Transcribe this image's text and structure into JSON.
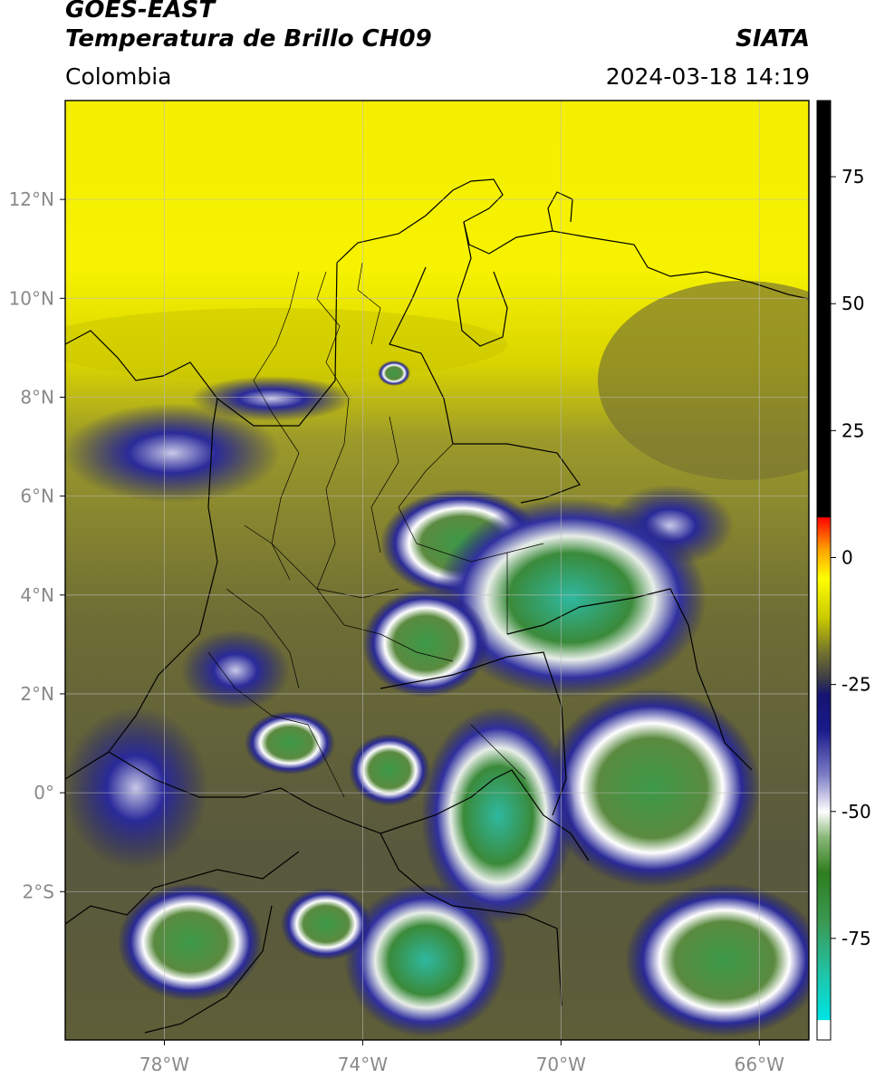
{
  "header": {
    "satellite": "GOES-EAST",
    "product": "Temperatura de Brillo CH09",
    "organization": "SIATA",
    "region": "Colombia",
    "timestamp": "2024-03-18 14:19"
  },
  "map": {
    "lon_range": [
      -80,
      -65
    ],
    "lat_range": [
      -5,
      14
    ],
    "lon_ticks": [
      {
        "value": -78,
        "label": "78°W"
      },
      {
        "value": -74,
        "label": "74°W"
      },
      {
        "value": -70,
        "label": "70°W"
      },
      {
        "value": -66,
        "label": "66°W"
      }
    ],
    "lat_ticks": [
      {
        "value": 12,
        "label": "12°N"
      },
      {
        "value": 10,
        "label": "10°N"
      },
      {
        "value": 8,
        "label": "8°N"
      },
      {
        "value": 6,
        "label": "6°N"
      },
      {
        "value": 4,
        "label": "4°N"
      },
      {
        "value": 2,
        "label": "2°N"
      },
      {
        "value": 0,
        "label": "0°"
      },
      {
        "value": -2,
        "label": "2°S"
      }
    ]
  },
  "colorbar": {
    "range": [
      -95,
      90
    ],
    "ticks": [
      {
        "value": 75,
        "label": "75"
      },
      {
        "value": 50,
        "label": "50"
      },
      {
        "value": 25,
        "label": "25"
      },
      {
        "value": 0,
        "label": "0"
      },
      {
        "value": -25,
        "label": "-25"
      },
      {
        "value": -50,
        "label": "-50"
      },
      {
        "value": -75,
        "label": "-75"
      }
    ],
    "stops": [
      {
        "value": -95,
        "color": "#ffffff"
      },
      {
        "value": -91,
        "color": "#ffffff"
      },
      {
        "value": -91,
        "color": "#00e5e5"
      },
      {
        "value": -82,
        "color": "#1fc4a8"
      },
      {
        "value": -72,
        "color": "#3a9a55"
      },
      {
        "value": -62,
        "color": "#2e7d1e"
      },
      {
        "value": -55,
        "color": "#8ab878"
      },
      {
        "value": -50,
        "color": "#ffffff"
      },
      {
        "value": -43,
        "color": "#8080c8"
      },
      {
        "value": -34,
        "color": "#1a1a8c"
      },
      {
        "value": -27,
        "color": "#141470"
      },
      {
        "value": -24,
        "color": "#3a3a4a"
      },
      {
        "value": -18,
        "color": "#7a7a2a"
      },
      {
        "value": -12,
        "color": "#c8c800"
      },
      {
        "value": -4,
        "color": "#ffff00"
      },
      {
        "value": 2,
        "color": "#ff9900"
      },
      {
        "value": 8,
        "color": "#ff0000"
      },
      {
        "value": 8,
        "color": "#000000"
      },
      {
        "value": 90,
        "color": "#000000"
      }
    ]
  }
}
